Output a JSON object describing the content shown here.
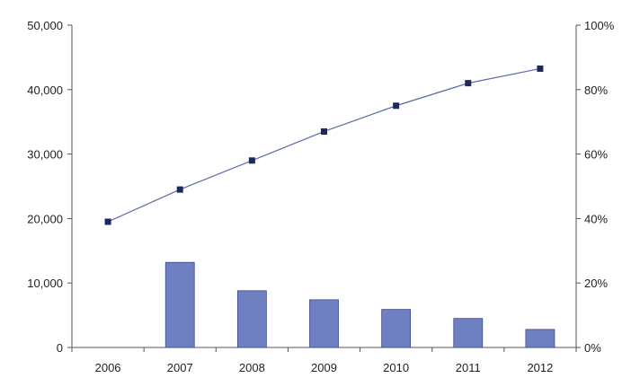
{
  "chart_data": {
    "type": "bar",
    "categories": [
      "2006",
      "2007",
      "2008",
      "2009",
      "2010",
      "2011",
      "2012"
    ],
    "y_left": {
      "ylim": [
        0,
        50000
      ],
      "ticks": [
        0,
        10000,
        20000,
        30000,
        40000,
        50000
      ],
      "tick_labels": [
        "0",
        "10,000",
        "20,000",
        "30,000",
        "40,000",
        "50,000"
      ]
    },
    "y_right": {
      "ylim": [
        0,
        100
      ],
      "ticks": [
        0,
        20,
        40,
        60,
        80,
        100
      ],
      "tick_labels": [
        "0%",
        "20%",
        "40%",
        "60%",
        "80%",
        "100%"
      ]
    },
    "series": [
      {
        "type": "bar",
        "axis": "left",
        "color": "#6f80c2",
        "values": [
          null,
          13200,
          8800,
          7400,
          5900,
          4500,
          2800
        ]
      },
      {
        "type": "line",
        "axis": "right",
        "color": "#1a2a5e",
        "marker": "square",
        "values": [
          39,
          49,
          58,
          67,
          75,
          82,
          86.5
        ]
      }
    ],
    "grid": false,
    "legend": "none"
  }
}
